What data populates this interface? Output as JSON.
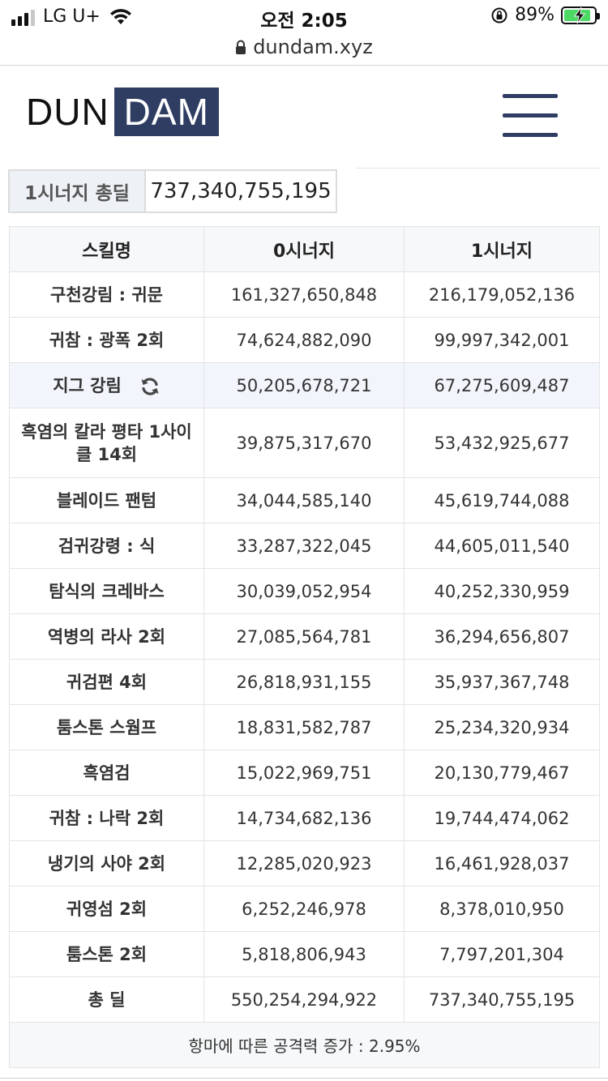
{
  "status_bar": {
    "carrier": "LG U+",
    "time": "오전 2:05",
    "battery_percent": "89%",
    "battery_level": 0.89,
    "signal_bars_active": 3,
    "signal_bars_total": 4
  },
  "browser": {
    "url": "dundam.xyz"
  },
  "header": {
    "logo_part1": "DUN",
    "logo_part2": "DAM",
    "menu_icon": "hamburger-menu-icon"
  },
  "total": {
    "label": "1시너지 총딜",
    "value": "737,340,755,195"
  },
  "table": {
    "headers": [
      "스킬명",
      "0시너지",
      "1시너지"
    ],
    "rows": [
      {
        "skill": "구천강림 : 귀문",
        "zero": "161,327,650,848",
        "one": "216,179,052,136"
      },
      {
        "skill": "귀참 : 광폭 2회",
        "zero": "74,624,882,090",
        "one": "99,997,342,001"
      },
      {
        "skill": "지그 강림",
        "zero": "50,205,678,721",
        "one": "67,275,609,487"
      },
      {
        "skill": "흑염의 칼라 평타 1사이클 14회",
        "zero": "39,875,317,670",
        "one": "53,432,925,677"
      },
      {
        "skill": "블레이드 팬텀",
        "zero": "34,044,585,140",
        "one": "45,619,744,088"
      },
      {
        "skill": "검귀강령 : 식",
        "zero": "33,287,322,045",
        "one": "44,605,011,540"
      },
      {
        "skill": "탐식의 크레바스",
        "zero": "30,039,052,954",
        "one": "40,252,330,959"
      },
      {
        "skill": "역병의 라사 2회",
        "zero": "27,085,564,781",
        "one": "36,294,656,807"
      },
      {
        "skill": "귀검편 4회",
        "zero": "26,818,931,155",
        "one": "35,937,367,748"
      },
      {
        "skill": "툼스톤 스웜프",
        "zero": "18,831,582,787",
        "one": "25,234,320,934"
      },
      {
        "skill": "흑염검",
        "zero": "15,022,969,751",
        "one": "20,130,779,467"
      },
      {
        "skill": "귀참 : 나락 2회",
        "zero": "14,734,682,136",
        "one": "19,744,474,062"
      },
      {
        "skill": "냉기의 사야 2회",
        "zero": "12,285,020,923",
        "one": "16,461,928,037"
      },
      {
        "skill": "귀영섬 2회",
        "zero": "6,252,246,978",
        "one": "8,378,010,950"
      },
      {
        "skill": "툼스톤 2회",
        "zero": "5,818,806,943",
        "one": "7,797,201,304"
      },
      {
        "skill": "총 딜",
        "zero": "550,254,294,922",
        "one": "737,340,755,195"
      }
    ],
    "footer": "항마에 따른 공격력 증가 : 2.95%"
  },
  "colors": {
    "brand_navy": "#2f3d63",
    "highlight_row": "#f2f5fb",
    "header_bg": "#f7f8fa",
    "battery_green": "#4cd964"
  }
}
